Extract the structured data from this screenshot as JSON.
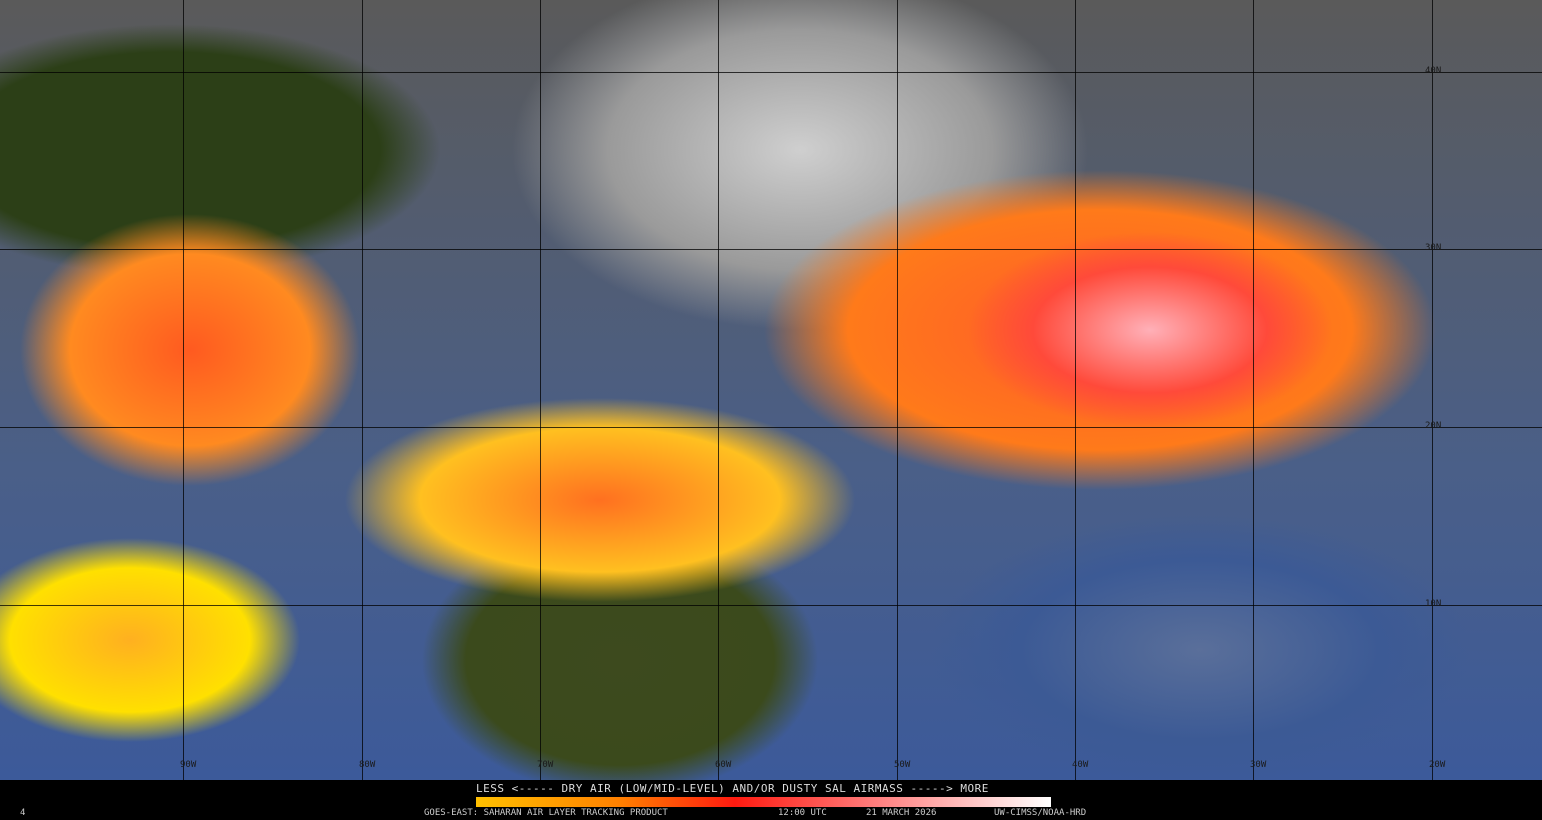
{
  "legend": {
    "title": "LESS <----- DRY AIR (LOW/MID-LEVEL) AND/OR DUSTY SAL AIRMASS -----> MORE",
    "colors": [
      "#ffc000",
      "#ff8000",
      "#ff1a10",
      "#ff8080",
      "#ffffff"
    ]
  },
  "footer": {
    "frame": "4",
    "product": "GOES-EAST: SAHARAN AIR LAYER TRACKING PRODUCT",
    "time": "12:00 UTC",
    "date": "21 MARCH 2026",
    "credit": "UW-CIMSS/NOAA-HRD"
  },
  "map": {
    "longitude_labels": [
      "90W",
      "80W",
      "70W",
      "60W",
      "50W",
      "40W",
      "30W",
      "20W"
    ],
    "latitude_labels": [
      "40N",
      "30N",
      "20N",
      "10N"
    ]
  }
}
